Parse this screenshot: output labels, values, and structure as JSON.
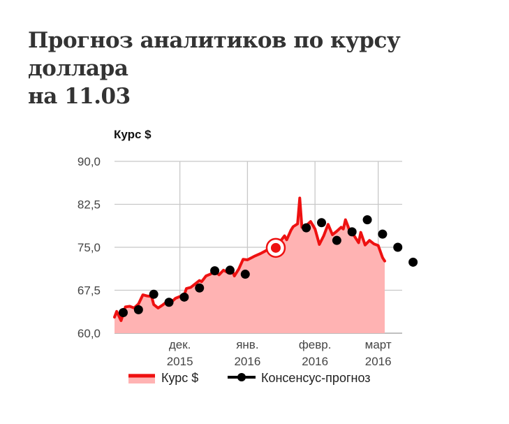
{
  "header": {
    "title_line1": "Прогноз аналитиков по курсу доллара",
    "title_line2": "на 11.03"
  },
  "chart_data": {
    "type": "line",
    "ylabel": "Курс $",
    "ylim": [
      60,
      90
    ],
    "yticks": [
      "90,0",
      "82,5",
      "75,0",
      "67,5",
      "60,0"
    ],
    "ytick_values": [
      90,
      82.5,
      75,
      67.5,
      60
    ],
    "xlim": [
      "2015-11-01",
      "2016-03-12"
    ],
    "xticks": [
      {
        "date": "2015-12-01",
        "line1": "дек.",
        "line2": "2015"
      },
      {
        "date": "2016-01-01",
        "line1": "янв.",
        "line2": "2016"
      },
      {
        "date": "2016-02-01",
        "line1": "февр.",
        "line2": "2016"
      },
      {
        "date": "2016-03-01",
        "line1": "март",
        "line2": "2016"
      }
    ],
    "grid": true,
    "legend": "bottom",
    "colors": {
      "rate": "#ee1111",
      "rate_fill": "#ffb3b3",
      "forecast": "#000000"
    },
    "series": [
      {
        "name": "Курс $",
        "style": "line-area",
        "points": [
          [
            "2015-11-01",
            62.8
          ],
          [
            "2015-11-02",
            63.8
          ],
          [
            "2015-11-04",
            62.2
          ],
          [
            "2015-11-06",
            64.6
          ],
          [
            "2015-11-08",
            64.7
          ],
          [
            "2015-11-10",
            64.4
          ],
          [
            "2015-11-12",
            65.1
          ],
          [
            "2015-11-14",
            66.7
          ],
          [
            "2015-11-16",
            66.5
          ],
          [
            "2015-11-18",
            66.4
          ],
          [
            "2015-11-19",
            65.0
          ],
          [
            "2015-11-21",
            64.4
          ],
          [
            "2015-11-23",
            64.9
          ],
          [
            "2015-11-25",
            65.5
          ],
          [
            "2015-11-27",
            65.4
          ],
          [
            "2015-11-29",
            66.1
          ],
          [
            "2015-12-01",
            66.4
          ],
          [
            "2015-12-03",
            66.7
          ],
          [
            "2015-12-04",
            67.8
          ],
          [
            "2015-12-06",
            68.0
          ],
          [
            "2015-12-08",
            68.6
          ],
          [
            "2015-12-10",
            69.2
          ],
          [
            "2015-12-11",
            69.0
          ],
          [
            "2015-12-13",
            70.0
          ],
          [
            "2015-12-15",
            70.3
          ],
          [
            "2015-12-17",
            70.9
          ],
          [
            "2015-12-18",
            70.5
          ],
          [
            "2015-12-19",
            70.2
          ],
          [
            "2015-12-21",
            71.0
          ],
          [
            "2015-12-23",
            70.6
          ],
          [
            "2015-12-25",
            71.0
          ],
          [
            "2015-12-26",
            70.0
          ],
          [
            "2015-12-28",
            71.2
          ],
          [
            "2015-12-30",
            72.9
          ],
          [
            "2016-01-01",
            72.8
          ],
          [
            "2016-01-04",
            73.4
          ],
          [
            "2016-01-07",
            73.9
          ],
          [
            "2016-01-09",
            74.3
          ],
          [
            "2016-01-12",
            75.0
          ],
          [
            "2016-01-14",
            75.4
          ],
          [
            "2016-01-16",
            76.0
          ],
          [
            "2016-01-18",
            77.0
          ],
          [
            "2016-01-19",
            76.3
          ],
          [
            "2016-01-21",
            78.0
          ],
          [
            "2016-01-22",
            78.6
          ],
          [
            "2016-01-24",
            79.1
          ],
          [
            "2016-01-25",
            83.6
          ],
          [
            "2016-01-26",
            78.5
          ],
          [
            "2016-01-28",
            78.8
          ],
          [
            "2016-01-30",
            79.5
          ],
          [
            "2016-02-01",
            78.2
          ],
          [
            "2016-02-03",
            75.5
          ],
          [
            "2016-02-05",
            77.0
          ],
          [
            "2016-02-07",
            79.0
          ],
          [
            "2016-02-09",
            77.2
          ],
          [
            "2016-02-11",
            77.8
          ],
          [
            "2016-02-13",
            78.5
          ],
          [
            "2016-02-14",
            78.2
          ],
          [
            "2016-02-15",
            79.8
          ],
          [
            "2016-02-17",
            77.8
          ],
          [
            "2016-02-19",
            77.0
          ],
          [
            "2016-02-21",
            75.8
          ],
          [
            "2016-02-22",
            77.6
          ],
          [
            "2016-02-24",
            75.4
          ],
          [
            "2016-02-26",
            76.2
          ],
          [
            "2016-02-28",
            75.6
          ],
          [
            "2016-03-01",
            75.3
          ],
          [
            "2016-03-03",
            73.2
          ],
          [
            "2016-03-04",
            72.6
          ]
        ]
      },
      {
        "name": "Консенсус-прогноз",
        "style": "markers",
        "points": [
          [
            "2015-11-05",
            63.6
          ],
          [
            "2015-11-12",
            64.1
          ],
          [
            "2015-11-19",
            66.8
          ],
          [
            "2015-11-26",
            65.4
          ],
          [
            "2015-12-03",
            66.3
          ],
          [
            "2015-12-10",
            67.9
          ],
          [
            "2015-12-17",
            70.9
          ],
          [
            "2015-12-24",
            71.0
          ],
          [
            "2015-12-31",
            70.3
          ],
          [
            "2016-01-14",
            74.9
          ],
          [
            "2016-01-28",
            78.4
          ],
          [
            "2016-02-04",
            79.3
          ],
          [
            "2016-02-11",
            76.2
          ],
          [
            "2016-02-18",
            77.7
          ],
          [
            "2016-02-25",
            79.8
          ],
          [
            "2016-03-03",
            77.3
          ],
          [
            "2016-03-10",
            75.0
          ],
          [
            "2016-03-17",
            72.4
          ]
        ],
        "highlight_index": 9
      }
    ]
  }
}
